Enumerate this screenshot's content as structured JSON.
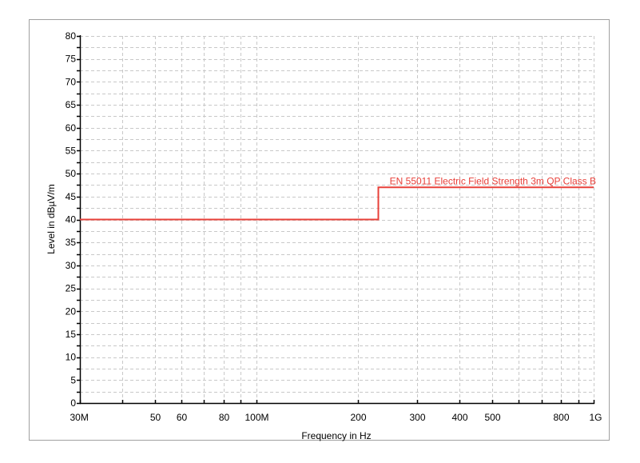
{
  "chart_data": {
    "type": "line",
    "title": "",
    "xlabel": "Frequency in Hz",
    "ylabel": "Level in dBµV/m",
    "x_scale": "log",
    "xlim": [
      30000000,
      1000000000
    ],
    "ylim": [
      0,
      80
    ],
    "grid": true,
    "x_ticks": [
      {
        "value": 30000000,
        "label": "30M"
      },
      {
        "value": 40000000,
        "label": ""
      },
      {
        "value": 50000000,
        "label": "50"
      },
      {
        "value": 60000000,
        "label": "60"
      },
      {
        "value": 70000000,
        "label": ""
      },
      {
        "value": 80000000,
        "label": "80"
      },
      {
        "value": 90000000,
        "label": ""
      },
      {
        "value": 100000000,
        "label": "100M"
      },
      {
        "value": 200000000,
        "label": "200"
      },
      {
        "value": 300000000,
        "label": "300"
      },
      {
        "value": 400000000,
        "label": "400"
      },
      {
        "value": 500000000,
        "label": "500"
      },
      {
        "value": 600000000,
        "label": ""
      },
      {
        "value": 700000000,
        "label": ""
      },
      {
        "value": 800000000,
        "label": "800"
      },
      {
        "value": 900000000,
        "label": ""
      },
      {
        "value": 1000000000,
        "label": "1G"
      }
    ],
    "y_ticks": [
      0,
      5,
      10,
      15,
      20,
      25,
      30,
      35,
      40,
      45,
      50,
      55,
      60,
      65,
      70,
      75,
      80
    ],
    "y_tick_labels": [
      "0",
      "5",
      "10",
      "15",
      "20",
      "25",
      "30",
      "35",
      "40",
      "45",
      "50",
      "55",
      "60",
      "65",
      "70",
      "75",
      "80"
    ],
    "series": [
      {
        "name": "EN 55011 Electric Field Strength 3m QP Class B",
        "color": "#e8403a",
        "x": [
          30000000,
          230000000,
          230000000,
          1000000000
        ],
        "y": [
          40,
          40,
          47,
          47
        ]
      }
    ]
  }
}
